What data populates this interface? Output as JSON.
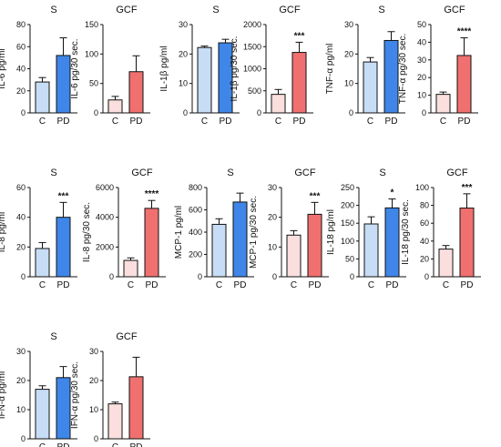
{
  "chart_data": [
    {
      "type": "bar",
      "title": "S",
      "ylabel": "IL-6 pg/ml",
      "categories": [
        "C",
        "PD"
      ],
      "values": [
        28,
        52
      ],
      "errors": [
        4,
        16
      ],
      "ylim": [
        0,
        80
      ],
      "yticks": [
        "0",
        "20",
        "40",
        "60",
        "80"
      ],
      "significance": "",
      "colors": [
        "#c7ddf5",
        "#3f86e8"
      ]
    },
    {
      "type": "bar",
      "title": "GCF",
      "ylabel": "IL-6 pg/30 sec.",
      "categories": [
        "C",
        "PD"
      ],
      "values": [
        22,
        70
      ],
      "errors": [
        6,
        27
      ],
      "ylim": [
        0,
        150
      ],
      "yticks": [
        "0",
        "50",
        "100",
        "150"
      ],
      "significance": "",
      "colors": [
        "#fbdede",
        "#f07070"
      ]
    },
    {
      "type": "bar",
      "title": "S",
      "ylabel": "IL-1β pg/ml",
      "categories": [
        "C",
        "PD"
      ],
      "values": [
        22.2,
        23.8
      ],
      "errors": [
        0.5,
        1.2
      ],
      "ylim": [
        0,
        30
      ],
      "yticks": [
        "0",
        "10",
        "20",
        "30"
      ],
      "significance": "",
      "colors": [
        "#c7ddf5",
        "#3f86e8"
      ]
    },
    {
      "type": "bar",
      "title": "GCF",
      "ylabel": "IL-1β pg/30 sec.",
      "categories": [
        "C",
        "PD"
      ],
      "values": [
        420,
        1370
      ],
      "errors": [
        110,
        230
      ],
      "ylim": [
        0,
        2000
      ],
      "yticks": [
        "0",
        "500",
        "1000",
        "1500",
        "2000"
      ],
      "significance": "***",
      "colors": [
        "#fbdede",
        "#f07070"
      ]
    },
    {
      "type": "bar",
      "title": "S",
      "ylabel": "TNF-α pg/ml",
      "categories": [
        "C",
        "PD"
      ],
      "values": [
        17.3,
        24.6
      ],
      "errors": [
        1.5,
        3
      ],
      "ylim": [
        0,
        30
      ],
      "yticks": [
        "0",
        "10",
        "20",
        "30"
      ],
      "significance": "",
      "colors": [
        "#c7ddf5",
        "#3f86e8"
      ]
    },
    {
      "type": "bar",
      "title": "GCF",
      "ylabel": "TNF-α pg/30 sec.",
      "categories": [
        "C",
        "PD"
      ],
      "values": [
        10.5,
        32.5
      ],
      "errors": [
        1.3,
        10
      ],
      "ylim": [
        0,
        50
      ],
      "yticks": [
        "0",
        "10",
        "20",
        "30",
        "40",
        "50"
      ],
      "significance": "****",
      "colors": [
        "#fbdede",
        "#f07070"
      ]
    },
    {
      "type": "bar",
      "title": "S",
      "ylabel": "IL-8 pg/ml",
      "categories": [
        "C",
        "PD"
      ],
      "values": [
        19,
        40
      ],
      "errors": [
        4,
        10
      ],
      "ylim": [
        0,
        60
      ],
      "yticks": [
        "0",
        "20",
        "40",
        "60"
      ],
      "significance": "***",
      "colors": [
        "#c7ddf5",
        "#3f86e8"
      ]
    },
    {
      "type": "bar",
      "title": "GCF",
      "ylabel": "IL-8 pg/30 sec.",
      "categories": [
        "C",
        "PD"
      ],
      "values": [
        1100,
        4600
      ],
      "errors": [
        170,
        530
      ],
      "ylim": [
        0,
        6000
      ],
      "yticks": [
        "0",
        "2000",
        "4000",
        "6000"
      ],
      "significance": "****",
      "colors": [
        "#fbdede",
        "#f07070"
      ]
    },
    {
      "type": "bar",
      "title": "S",
      "ylabel": "MCP-1 pg/ml",
      "categories": [
        "C",
        "PD"
      ],
      "values": [
        470,
        670
      ],
      "errors": [
        50,
        80
      ],
      "ylim": [
        0,
        800
      ],
      "yticks": [
        "0",
        "200",
        "400",
        "600",
        "800"
      ],
      "significance": "",
      "colors": [
        "#c7ddf5",
        "#3f86e8"
      ]
    },
    {
      "type": "bar",
      "title": "GCF",
      "ylabel": "MCP-1 pg/30 sec.",
      "categories": [
        "C",
        "PD"
      ],
      "values": [
        14,
        21
      ],
      "errors": [
        1.5,
        4
      ],
      "ylim": [
        0,
        30
      ],
      "yticks": [
        "0",
        "10",
        "20",
        "30"
      ],
      "significance": "***",
      "colors": [
        "#fbdede",
        "#f07070"
      ]
    },
    {
      "type": "bar",
      "title": "S",
      "ylabel": "IL-18 pg/ml",
      "categories": [
        "C",
        "PD"
      ],
      "values": [
        148,
        193
      ],
      "errors": [
        20,
        25
      ],
      "ylim": [
        0,
        250
      ],
      "yticks": [
        "0",
        "50",
        "100",
        "150",
        "200",
        "250"
      ],
      "significance": "*",
      "colors": [
        "#c7ddf5",
        "#3f86e8"
      ]
    },
    {
      "type": "bar",
      "title": "GCF",
      "ylabel": "IL-18 pg/30 sec.",
      "categories": [
        "C",
        "PD"
      ],
      "values": [
        31,
        77
      ],
      "errors": [
        4,
        16
      ],
      "ylim": [
        0,
        100
      ],
      "yticks": [
        "0",
        "20",
        "40",
        "60",
        "80",
        "100"
      ],
      "significance": "***",
      "colors": [
        "#fbdede",
        "#f07070"
      ]
    },
    {
      "type": "bar",
      "title": "S",
      "ylabel": "IFN-α pg/ml",
      "categories": [
        "C",
        "PD"
      ],
      "values": [
        17,
        21
      ],
      "errors": [
        1.2,
        3.8
      ],
      "ylim": [
        0,
        30
      ],
      "yticks": [
        "0",
        "10",
        "20",
        "30"
      ],
      "significance": "",
      "colors": [
        "#c7ddf5",
        "#3f86e8"
      ]
    },
    {
      "type": "bar",
      "title": "GCF",
      "ylabel": "IFN-α pg/30 sec.",
      "categories": [
        "C",
        "PD"
      ],
      "values": [
        12,
        21.3
      ],
      "errors": [
        0.6,
        6.7
      ],
      "ylim": [
        0,
        30
      ],
      "yticks": [
        "0",
        "10",
        "20",
        "30"
      ],
      "significance": "",
      "colors": [
        "#fbdede",
        "#f07070"
      ]
    }
  ]
}
